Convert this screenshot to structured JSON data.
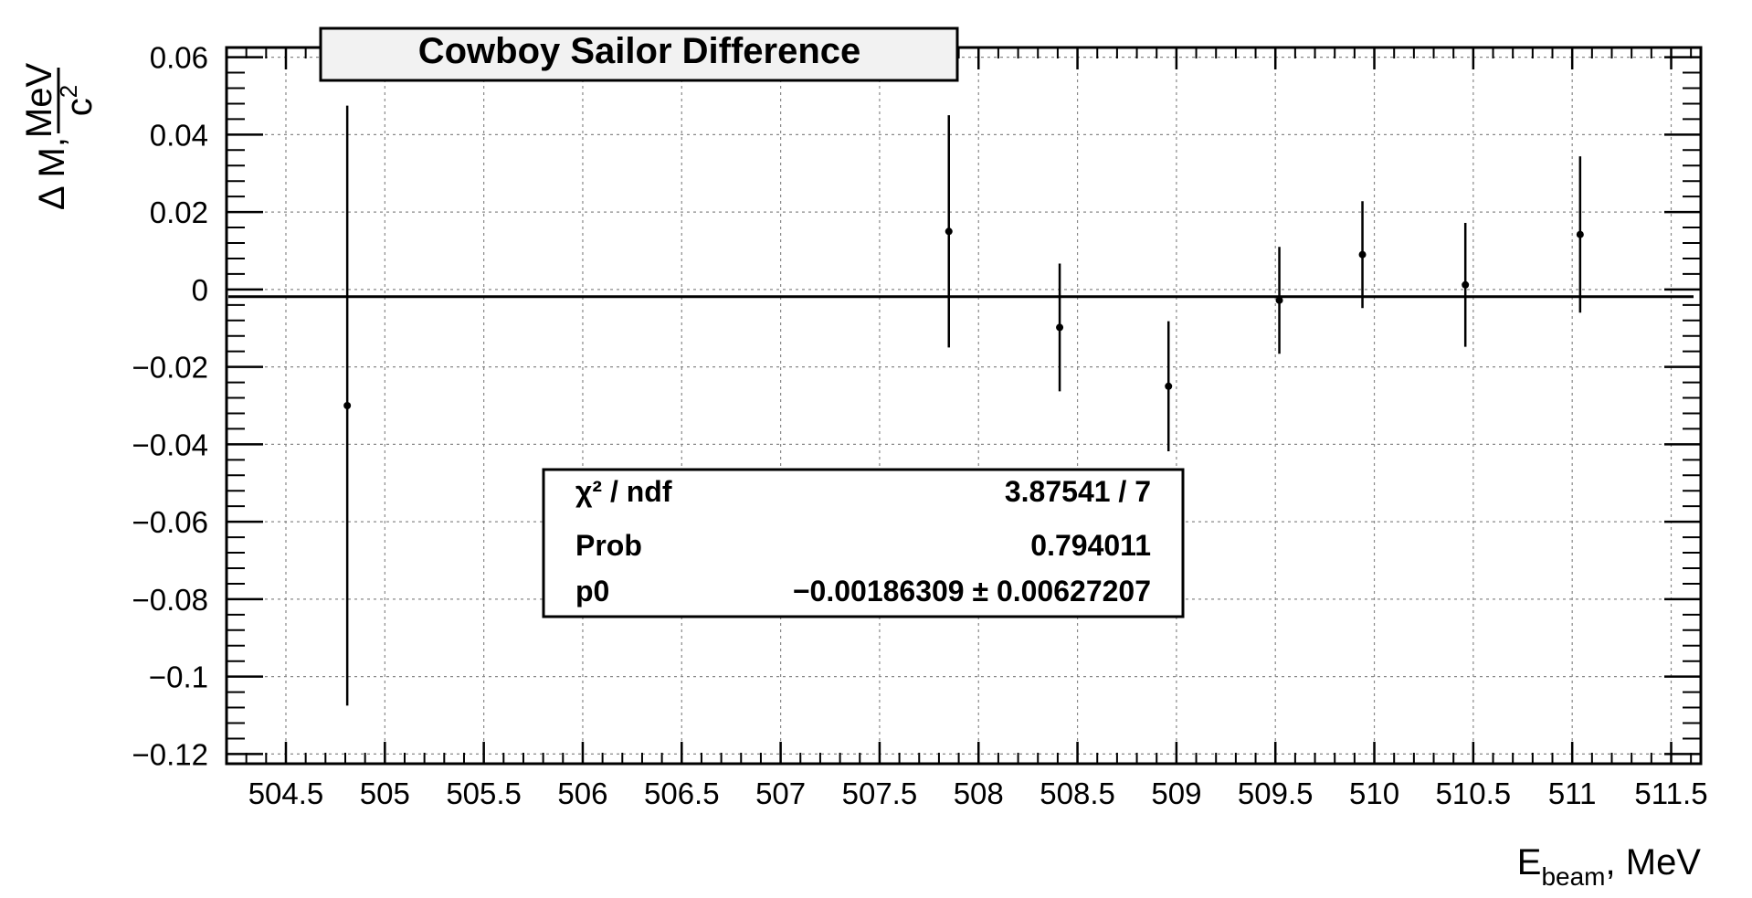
{
  "chart_data": {
    "type": "scatter",
    "title": "Cowboy Sailor Difference",
    "xlabel": {
      "main": "E",
      "sub": "beam",
      "rest": ", MeV"
    },
    "ylabel": {
      "prefix": "Δ M,",
      "numerator": "MeV",
      "denominator": "c",
      "denominator_sup": "2"
    },
    "xlim": [
      504.2,
      511.65
    ],
    "ylim": [
      -0.1225,
      0.0625
    ],
    "xticks": [
      {
        "v": 504.5,
        "label": "504.5"
      },
      {
        "v": 505,
        "label": "505"
      },
      {
        "v": 505.5,
        "label": "505.5"
      },
      {
        "v": 506,
        "label": "506"
      },
      {
        "v": 506.5,
        "label": "506.5"
      },
      {
        "v": 507,
        "label": "507"
      },
      {
        "v": 507.5,
        "label": "507.5"
      },
      {
        "v": 508,
        "label": "508"
      },
      {
        "v": 508.5,
        "label": "508.5"
      },
      {
        "v": 509,
        "label": "509"
      },
      {
        "v": 509.5,
        "label": "509.5"
      },
      {
        "v": 510,
        "label": "510"
      },
      {
        "v": 510.5,
        "label": "510.5"
      },
      {
        "v": 511,
        "label": "511"
      },
      {
        "v": 511.5,
        "label": "511.5"
      }
    ],
    "yticks": [
      {
        "v": 0.06,
        "label": "0.06"
      },
      {
        "v": 0.04,
        "label": "0.04"
      },
      {
        "v": 0.02,
        "label": "0.02"
      },
      {
        "v": 0,
        "label": "0"
      },
      {
        "v": -0.02,
        "label": "−0.02"
      },
      {
        "v": -0.04,
        "label": "−0.04"
      },
      {
        "v": -0.06,
        "label": "−0.06"
      },
      {
        "v": -0.08,
        "label": "−0.08"
      },
      {
        "v": -0.1,
        "label": "−0.1"
      },
      {
        "v": -0.12,
        "label": "−0.12"
      }
    ],
    "grid": true,
    "points": [
      {
        "x": 504.81,
        "y": -0.03,
        "err": 0.0775
      },
      {
        "x": 507.85,
        "y": 0.015,
        "err": 0.03
      },
      {
        "x": 508.41,
        "y": -0.0098,
        "err": 0.0165
      },
      {
        "x": 508.96,
        "y": -0.025,
        "err": 0.0168
      },
      {
        "x": 509.52,
        "y": -0.0028,
        "err": 0.0138
      },
      {
        "x": 509.94,
        "y": 0.009,
        "err": 0.0138
      },
      {
        "x": 510.46,
        "y": 0.0012,
        "err": 0.016
      },
      {
        "x": 511.04,
        "y": 0.0142,
        "err": 0.0202
      }
    ],
    "fit": {
      "type": "constant",
      "p0": -0.00186309
    },
    "stats": {
      "rows": [
        {
          "label": "χ² / ndf",
          "value": "3.87541 / 7"
        },
        {
          "label": "Prob",
          "value": "0.794011"
        },
        {
          "label": "p0",
          "value": "−0.00186309 ± 0.00627207"
        }
      ]
    }
  }
}
